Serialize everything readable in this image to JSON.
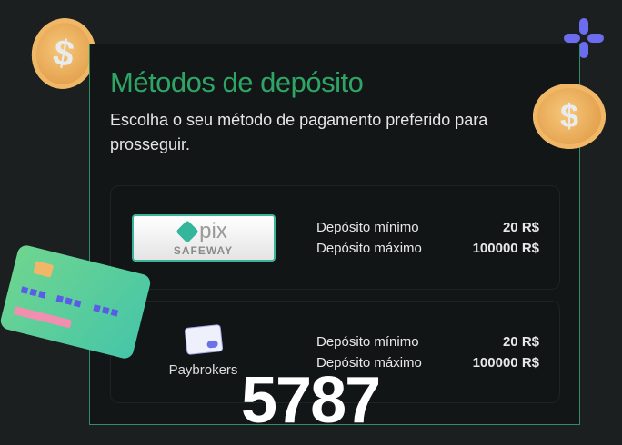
{
  "title": "Métodos de depósito",
  "subtitle": "Escolha o seu método de pagamento preferido para prosseguir.",
  "methods": [
    {
      "name": "Pix Safeway",
      "logo_text": "pix",
      "logo_sub": "SAFEWAY",
      "min_label": "Depósito mínimo",
      "min_value": "20 R$",
      "max_label": "Depósito máximo",
      "max_value": "100000 R$"
    },
    {
      "name": "Paybrokers",
      "min_label": "Depósito mínimo",
      "min_value": "20 R$",
      "max_label": "Depósito máximo",
      "max_value": "100000 R$"
    }
  ],
  "watermark": "5787",
  "colors": {
    "accent": "#2fa565",
    "border": "#2f8f64",
    "background": "#1b1f1f"
  }
}
